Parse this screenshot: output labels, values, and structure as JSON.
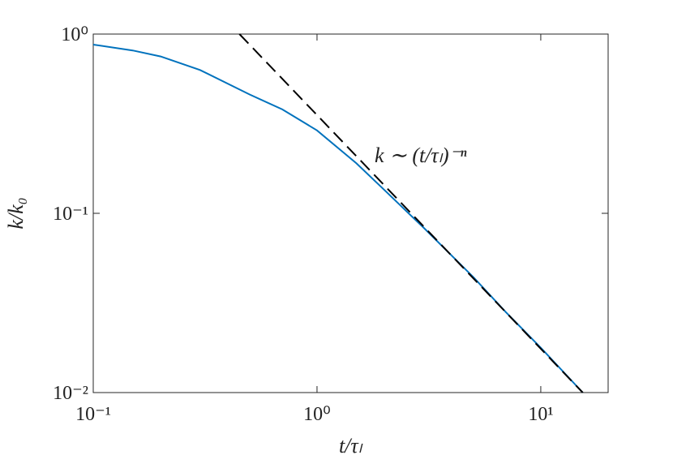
{
  "chart_data": {
    "type": "line",
    "xlabel": "t/τₗ",
    "ylabel": "k/k₀",
    "annotation": "k ∼ (t/τₗ)⁻ⁿ",
    "xscale": "log",
    "yscale": "log",
    "xlim": [
      0.1,
      20
    ],
    "ylim": [
      0.01,
      1
    ],
    "xticks": [
      {
        "value": 0.1,
        "label": "10⁻¹"
      },
      {
        "value": 1,
        "label": "10⁰"
      },
      {
        "value": 10,
        "label": "10¹"
      }
    ],
    "yticks": [
      {
        "value": 0.01,
        "label": "10⁻²"
      },
      {
        "value": 0.1,
        "label": "10⁻¹"
      },
      {
        "value": 1,
        "label": "10⁰"
      }
    ],
    "series": [
      {
        "color": "#0072bd",
        "dash": "solid",
        "x": [
          0.1,
          0.15,
          0.2,
          0.3,
          0.5,
          0.7,
          1,
          1.5,
          2,
          3,
          5,
          7,
          10,
          15.4
        ],
        "values": [
          0.873,
          0.81,
          0.75,
          0.63,
          0.46,
          0.38,
          0.29,
          0.19,
          0.135,
          0.083,
          0.044,
          0.028,
          0.0178,
          0.01
        ]
      },
      {
        "color": "#000000",
        "dash": "dashed",
        "x": [
          0.45,
          15.4
        ],
        "values": [
          1,
          0.01
        ]
      }
    ]
  }
}
